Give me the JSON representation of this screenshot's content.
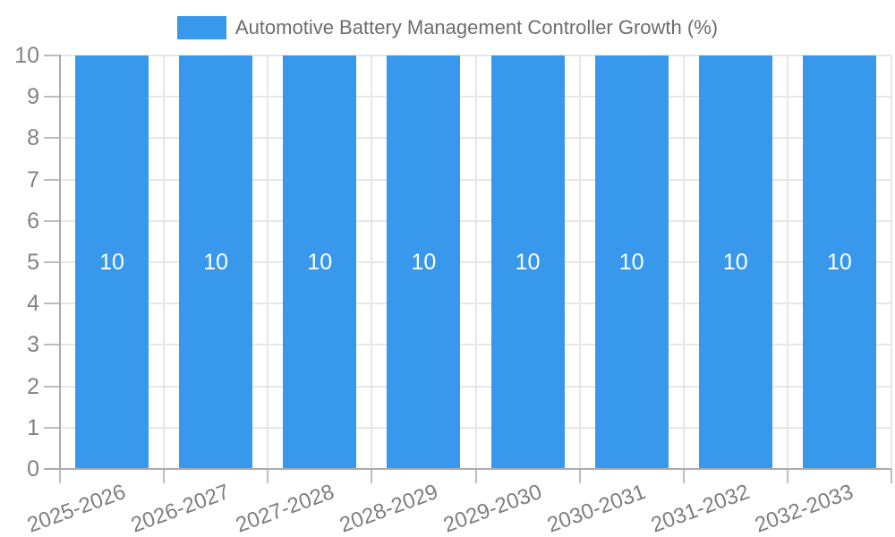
{
  "legend": {
    "label": "Automotive Battery Management Controller Growth (%)"
  },
  "chart_data": {
    "type": "bar",
    "title": "Automotive Battery Management Controller Growth (%)",
    "categories": [
      "2025-2026",
      "2026-2027",
      "2027-2028",
      "2028-2029",
      "2029-2030",
      "2030-2031",
      "2031-2032",
      "2032-2033"
    ],
    "values": [
      10,
      10,
      10,
      10,
      10,
      10,
      10,
      10
    ],
    "data_labels": [
      "10",
      "10",
      "10",
      "10",
      "10",
      "10",
      "10",
      "10"
    ],
    "yticks": [
      0,
      1,
      2,
      3,
      4,
      5,
      6,
      7,
      8,
      9,
      10
    ],
    "ylim": [
      0,
      10
    ],
    "xlabel": "",
    "ylabel": "",
    "grid": true,
    "legend_position": "top",
    "colors": {
      "bar": "#3899EC",
      "grid": "#E7E7E7",
      "axis": "#ABABAB",
      "tick": "#BDBDBD",
      "y_label_text": "#828282",
      "x_label_text": "#7E7E7E",
      "title_text": "#6D6D6D",
      "value_label_text": "#FFFFFF",
      "background": "#FFFFFF"
    }
  }
}
